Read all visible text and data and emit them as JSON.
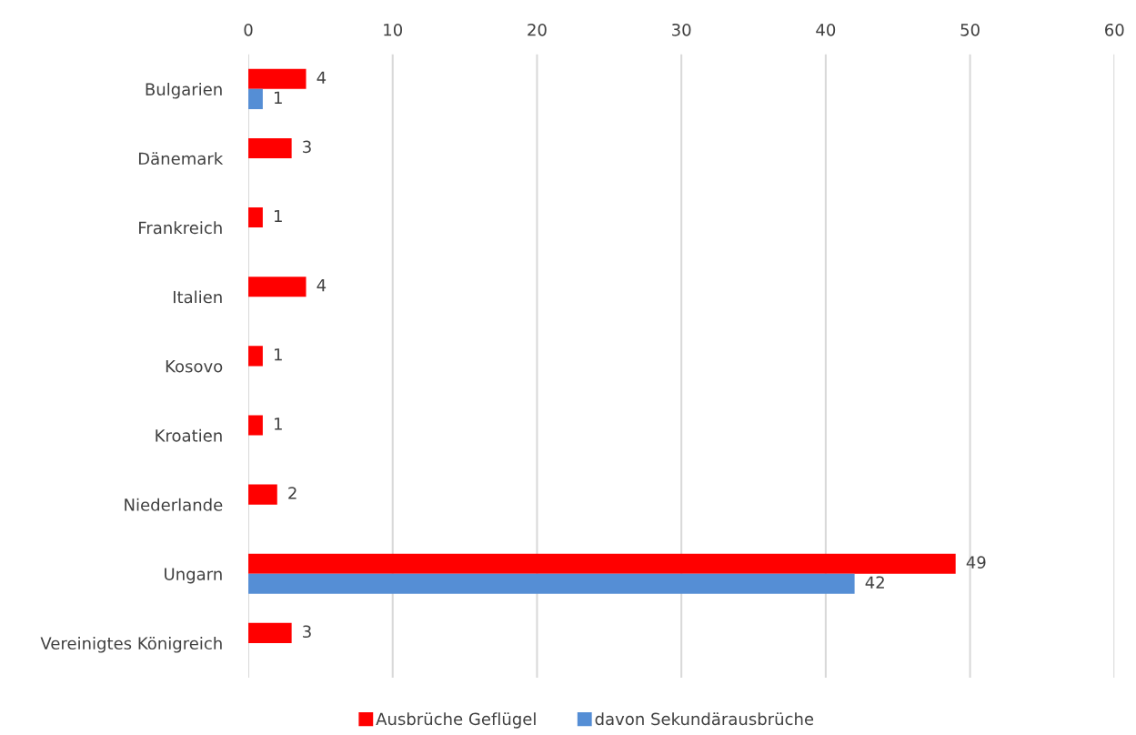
{
  "chart_data": {
    "type": "bar",
    "orientation": "horizontal",
    "categories": [
      "Bulgarien",
      "Dänemark",
      "Frankreich",
      "Italien",
      "Kosovo",
      "Kroatien",
      "Niederlande",
      "Ungarn",
      "Vereinigtes Königreich"
    ],
    "series": [
      {
        "name": "Ausbrüche Geflügel",
        "color": "#ff0000",
        "values": [
          4,
          3,
          1,
          4,
          1,
          1,
          2,
          49,
          3
        ]
      },
      {
        "name": "davon Sekundärausbrüche",
        "color": "#558ed5",
        "values": [
          1,
          null,
          null,
          null,
          null,
          null,
          null,
          42,
          null
        ]
      }
    ],
    "xlim": [
      0,
      60
    ],
    "xticks": [
      0,
      10,
      20,
      30,
      40,
      50,
      60
    ],
    "grid": "x",
    "legend": "bottom",
    "data_labels": true
  }
}
